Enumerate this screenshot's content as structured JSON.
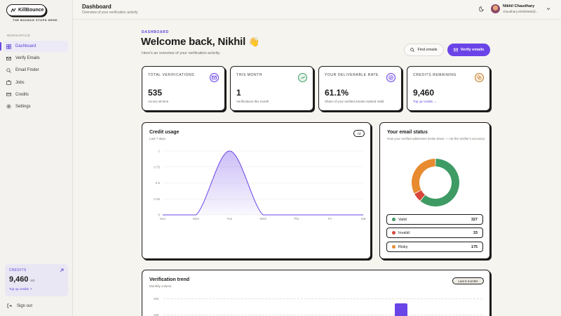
{
  "app": {
    "brand": "KillBounce",
    "tagline": "THE BOUNCE STOPS HERE.",
    "workspace_label": "WORKSPACE"
  },
  "sidebar": {
    "items": [
      {
        "label": "Dashboard",
        "icon": "grid-icon",
        "active": true
      },
      {
        "label": "Verify Emails",
        "icon": "mail-icon"
      },
      {
        "label": "Email Finder",
        "icon": "search-icon"
      },
      {
        "label": "Jobs",
        "icon": "briefcase-icon"
      },
      {
        "label": "Credits",
        "icon": "card-icon"
      },
      {
        "label": "Settings",
        "icon": "gear-icon"
      }
    ],
    "credits": {
      "label": "CREDITS",
      "value": "9,460",
      "unit": "left",
      "link": "Top up credits ↗"
    },
    "signout": "Sign out"
  },
  "header": {
    "title": "Dashboard",
    "subtitle": "Overview of your verification activity",
    "user_name": "Nikhil Chaudhary",
    "user_email": "chaudhary.nikhil6585@..."
  },
  "main": {
    "eyebrow": "DASHBOARD",
    "welcome": "Welcome back, Nikhil",
    "welcome_emoji": "👋",
    "welcome_sub": "Here's an overview of your verification activity.",
    "find_button": "Find emails",
    "verify_button": "Verify emails"
  },
  "stats": [
    {
      "label": "TOTAL VERIFICATIONS",
      "value": "535",
      "sub": "Across all time",
      "icon": "mail-icon"
    },
    {
      "label": "THIS MONTH",
      "value": "1",
      "sub": "Verifications this month",
      "icon": "trend-up-icon"
    },
    {
      "label": "YOUR DELIVERABLE RATE",
      "value": "61.1%",
      "sub": "Share of your verified emails marked Valid",
      "icon": "check-circle-icon"
    },
    {
      "label": "CREDITS REMAINING",
      "value": "9,460",
      "sub": "Top up credits →",
      "icon": "coins-icon"
    }
  ],
  "credit_usage": {
    "title": "Credit usage",
    "subtitle": "Last 7 days",
    "range_pill": "7d"
  },
  "email_status": {
    "title": "Your email status",
    "subtitle": "How your verified addresses broke down — not the verifier's accuracy",
    "rows": [
      {
        "label": "Valid",
        "count": "327",
        "color": "#3e9b64"
      },
      {
        "label": "Invalid",
        "count": "33",
        "color": "#d9473a"
      },
      {
        "label": "Risky",
        "count": "175",
        "color": "#e88a2e"
      }
    ]
  },
  "trend": {
    "title": "Verification trend",
    "subtitle": "Monthly volume",
    "range_pill": "Last 6 months",
    "y_ticks": [
      "200",
      "150"
    ]
  },
  "chart_data": [
    {
      "type": "area",
      "title": "Credit usage",
      "categories": [
        "Sun",
        "Mon",
        "Tue",
        "Wed",
        "Thu",
        "Fri",
        "Sat"
      ],
      "values": [
        0,
        0,
        1,
        0,
        0,
        0,
        0
      ],
      "y_ticks": [
        "0",
        "0.25",
        "0.5",
        "0.75",
        "1"
      ],
      "ylim": [
        0,
        1
      ],
      "color": "#6b44e8"
    },
    {
      "type": "pie",
      "title": "Your email status",
      "labels": [
        "Valid",
        "Invalid",
        "Risky"
      ],
      "values": [
        327,
        33,
        175
      ],
      "colors": [
        "#3e9b64",
        "#d9473a",
        "#e88a2e"
      ]
    }
  ],
  "colors": {
    "accent": "#6b44e8",
    "background": "#f6f4ef"
  }
}
